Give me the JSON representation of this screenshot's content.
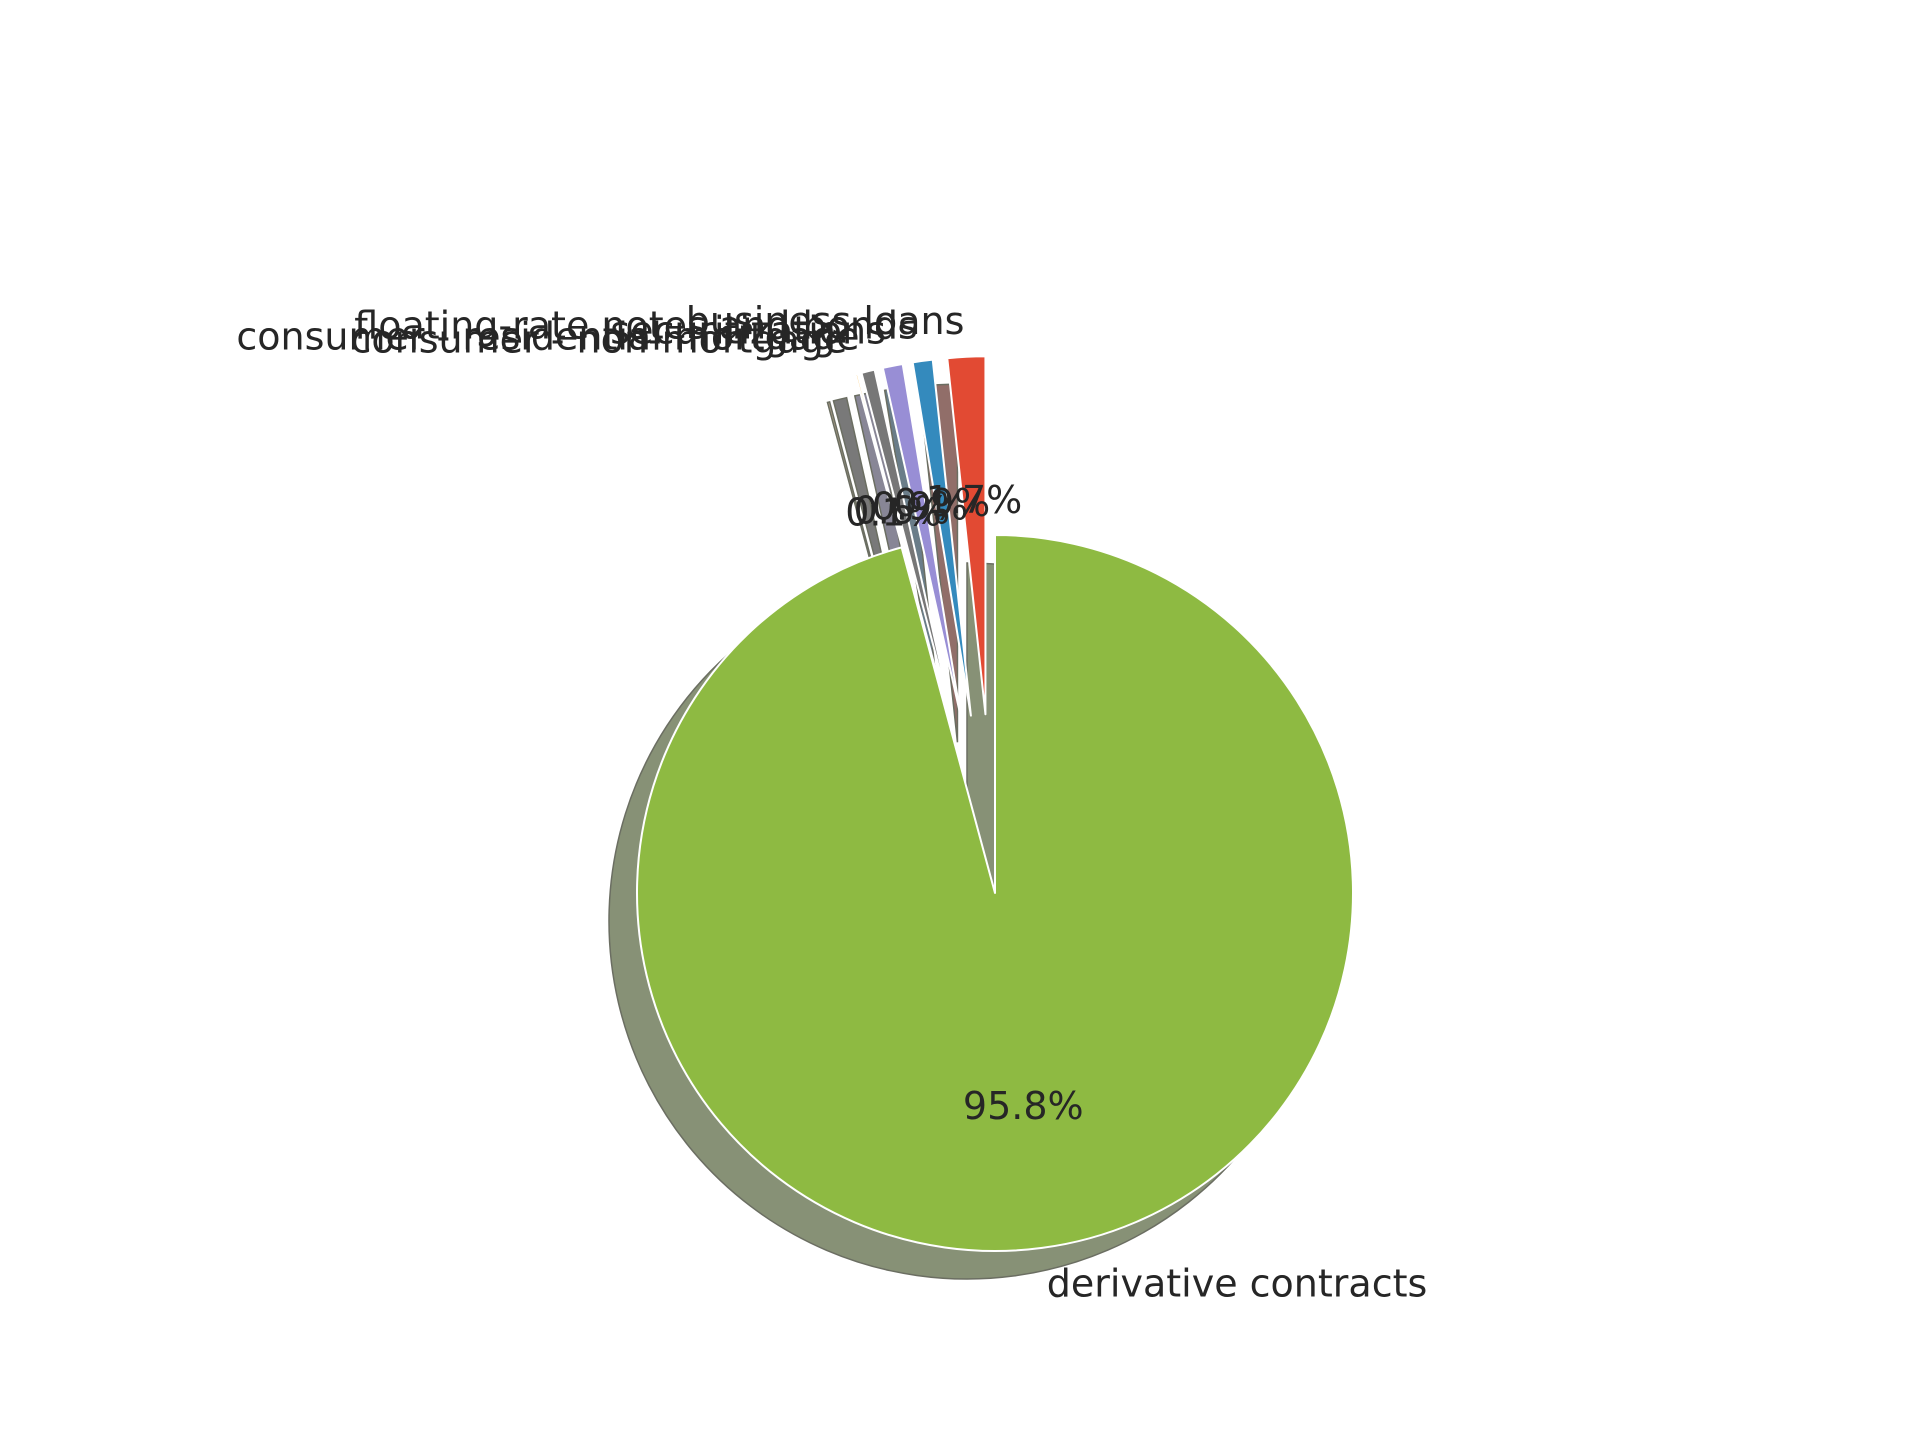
{
  "chart_data": {
    "type": "pie",
    "title": "",
    "startangle_deg": 90,
    "shadow": true,
    "slices": [
      {
        "label": "business loans",
        "value": 1.7,
        "pct_label": "1.7%",
        "color": "#E24A33",
        "explode": 0.5
      },
      {
        "label": "floating-rate notes and bonds",
        "value": 0.9,
        "pct_label": "0.9%",
        "color": "#348ABD",
        "explode": 0.5
      },
      {
        "label": "securitizations",
        "value": 0.9,
        "pct_label": "0.9%",
        "color": "#988ED5",
        "explode": 0.5
      },
      {
        "label": "consumer - residential mortgage",
        "value": 0.6,
        "pct_label": "0.6%",
        "color": "#777777",
        "explode": 0.5
      },
      {
        "label": "consumer - non-mortgage",
        "value": 0.1,
        "pct_label": "0.1%",
        "color": "#FBC15E",
        "explode": 0.5
      },
      {
        "label": "derivative contracts",
        "value": 95.8,
        "pct_label": "95.8%",
        "color": "#8EBA42",
        "explode": 0.0
      }
    ]
  }
}
